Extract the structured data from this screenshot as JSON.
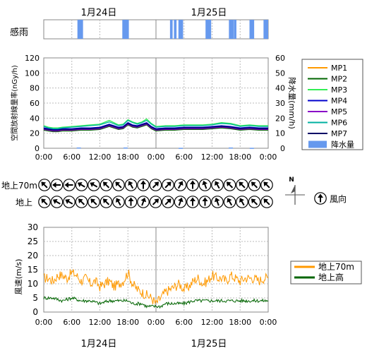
{
  "dates": [
    "1月24日",
    "1月25日"
  ],
  "time_ticks": [
    "0:00",
    "6:00",
    "12:00",
    "18:00",
    "0:00",
    "6:00",
    "12:00",
    "18:00",
    "0:00"
  ],
  "colors": {
    "MP1": "#ff9900",
    "MP2": "#006400",
    "MP3": "#33ee55",
    "MP4": "#0000cc",
    "MP5": "#8a00c8",
    "MP6": "#00b0a0",
    "MP7": "#000066",
    "rain": "#6699ee",
    "wind70": "#ff9900",
    "windGround": "#006400"
  },
  "rain_sense": {
    "label": "感雨",
    "intervals_hours": [
      [
        7.2,
        8.4
      ],
      [
        16.8,
        18.2
      ],
      [
        28.8,
        29.8
      ],
      [
        34.6,
        35.8
      ],
      [
        39.6,
        40.6
      ],
      [
        44.0,
        45.0
      ],
      [
        47.0,
        48.0
      ]
    ],
    "double_intervals_hours": [
      [
        27.0,
        28.4
      ],
      [
        39.8,
        41.2
      ]
    ]
  },
  "chart_data": [
    {
      "type": "line",
      "title": "",
      "ylabel": "空間放射線量率(nGy/h)",
      "y2label": "降水量(mm/h)",
      "ylim": [
        0,
        120
      ],
      "y2lim": [
        0,
        60
      ],
      "yticks": [
        0,
        20,
        40,
        60,
        80,
        100,
        120
      ],
      "y2ticks": [
        0,
        10,
        20,
        30,
        40,
        50,
        60
      ],
      "xlim_hours": [
        0,
        48
      ],
      "grid": true,
      "legend_position": "right",
      "series": [
        {
          "name": "MP1",
          "key": "MP1",
          "x_hours": [
            0,
            1,
            2,
            3,
            4,
            6,
            8,
            10,
            12,
            14,
            16,
            17,
            18,
            19,
            20,
            21,
            22,
            23,
            24,
            26,
            28,
            30,
            32,
            34,
            36,
            38,
            40,
            42,
            44,
            46,
            48
          ],
          "values": [
            26,
            25,
            23,
            24,
            24,
            25,
            26,
            26,
            27,
            31,
            27,
            28,
            33,
            30,
            29,
            31,
            33,
            28,
            25,
            26,
            26,
            27,
            27,
            27,
            28,
            29,
            28,
            26,
            27,
            26,
            26
          ]
        },
        {
          "name": "MP2",
          "key": "MP2",
          "x_hours": [
            0,
            1,
            2,
            3,
            4,
            6,
            8,
            10,
            12,
            14,
            16,
            17,
            18,
            19,
            20,
            21,
            22,
            23,
            24,
            26,
            28,
            30,
            32,
            34,
            36,
            38,
            40,
            42,
            44,
            46,
            48
          ],
          "values": [
            24,
            23,
            22,
            22,
            23,
            23,
            24,
            24,
            25,
            29,
            25,
            26,
            31,
            28,
            27,
            29,
            31,
            26,
            23,
            24,
            24,
            25,
            25,
            25,
            26,
            27,
            26,
            24,
            25,
            24,
            24
          ]
        },
        {
          "name": "MP3",
          "key": "MP3",
          "x_hours": [
            0,
            1,
            2,
            3,
            4,
            6,
            8,
            10,
            12,
            14,
            16,
            17,
            18,
            19,
            20,
            21,
            22,
            23,
            24,
            26,
            28,
            30,
            32,
            34,
            36,
            38,
            40,
            42,
            44,
            46,
            48
          ],
          "values": [
            30,
            28,
            27,
            27,
            28,
            29,
            30,
            31,
            32,
            37,
            31,
            32,
            38,
            35,
            33,
            35,
            39,
            33,
            29,
            30,
            30,
            31,
            31,
            31,
            32,
            34,
            33,
            30,
            31,
            30,
            30
          ]
        },
        {
          "name": "MP4",
          "key": "MP4",
          "x_hours": [
            0,
            1,
            2,
            3,
            4,
            6,
            8,
            10,
            12,
            14,
            16,
            17,
            18,
            19,
            20,
            21,
            22,
            23,
            24,
            26,
            28,
            30,
            32,
            34,
            36,
            38,
            40,
            42,
            44,
            46,
            48
          ],
          "values": [
            27,
            26,
            25,
            25,
            26,
            26,
            27,
            27,
            28,
            32,
            28,
            29,
            34,
            31,
            30,
            32,
            34,
            29,
            26,
            27,
            27,
            28,
            28,
            28,
            29,
            30,
            29,
            27,
            28,
            27,
            27
          ]
        },
        {
          "name": "MP5",
          "key": "MP5",
          "x_hours": [
            0,
            1,
            2,
            3,
            4,
            6,
            8,
            10,
            12,
            14,
            16,
            17,
            18,
            19,
            20,
            21,
            22,
            23,
            24,
            26,
            28,
            30,
            32,
            34,
            36,
            38,
            40,
            42,
            44,
            46,
            48
          ],
          "values": [
            25,
            24,
            23,
            23,
            24,
            24,
            25,
            25,
            26,
            30,
            26,
            27,
            32,
            29,
            28,
            30,
            32,
            27,
            24,
            25,
            25,
            26,
            26,
            26,
            27,
            28,
            27,
            25,
            26,
            25,
            25
          ]
        },
        {
          "name": "MP6",
          "key": "MP6",
          "x_hours": [
            0,
            1,
            2,
            3,
            4,
            6,
            8,
            10,
            12,
            14,
            16,
            17,
            18,
            19,
            20,
            21,
            22,
            23,
            24,
            26,
            28,
            30,
            32,
            34,
            36,
            38,
            40,
            42,
            44,
            46,
            48
          ],
          "values": [
            29,
            27,
            26,
            26,
            27,
            28,
            29,
            30,
            31,
            35,
            30,
            31,
            37,
            34,
            32,
            34,
            37,
            32,
            28,
            29,
            29,
            30,
            30,
            30,
            31,
            33,
            32,
            29,
            30,
            29,
            29
          ]
        },
        {
          "name": "MP7",
          "key": "MP7",
          "x_hours": [
            0,
            1,
            2,
            3,
            4,
            6,
            8,
            10,
            12,
            14,
            16,
            17,
            18,
            19,
            20,
            21,
            22,
            23,
            24,
            26,
            28,
            30,
            32,
            34,
            36,
            38,
            40,
            42,
            44,
            46,
            48
          ],
          "values": [
            26,
            25,
            24,
            24,
            25,
            25,
            26,
            26,
            27,
            31,
            27,
            28,
            33,
            30,
            29,
            31,
            33,
            28,
            25,
            26,
            26,
            27,
            27,
            27,
            28,
            29,
            28,
            26,
            27,
            26,
            26
          ]
        },
        {
          "name": "降水量",
          "key": "rain",
          "type": "bar",
          "axis": "right",
          "x_hours": [
            7.5,
            17.5,
            29.3,
            40.0,
            44.5
          ],
          "values": [
            0.5,
            0.5,
            0.3,
            0.5,
            0.3
          ]
        }
      ]
    },
    {
      "type": "table",
      "title": "",
      "rows": [
        {
          "label": "地上70m",
          "key": "d70",
          "directions_deg": [
            135,
            90,
            90,
            120,
            120,
            135,
            135,
            150,
            180,
            225,
            225,
            210,
            180,
            160,
            150,
            135,
            135,
            135,
            135
          ]
        },
        {
          "label": "地上",
          "key": "dg",
          "directions_deg": [
            135,
            120,
            120,
            135,
            135,
            135,
            150,
            180,
            200,
            225,
            225,
            200,
            180,
            180,
            160,
            150,
            150,
            135,
            135
          ]
        }
      ],
      "legend_label": "風向",
      "north_label": "N"
    },
    {
      "type": "line",
      "title": "",
      "ylabel": "風速(m/s)",
      "ylim": [
        0,
        30
      ],
      "yticks": [
        0,
        5,
        10,
        15,
        20,
        25,
        30
      ],
      "xlim_hours": [
        0,
        48
      ],
      "grid": true,
      "legend_position": "right",
      "series": [
        {
          "name": "地上70m",
          "key": "wind70",
          "x_hours": [
            0,
            1,
            2,
            3,
            4,
            5,
            6,
            7,
            8,
            9,
            10,
            11,
            12,
            13,
            14,
            15,
            16,
            17,
            18,
            19,
            20,
            21,
            22,
            23,
            24,
            25,
            26,
            27,
            28,
            29,
            30,
            31,
            32,
            33,
            34,
            35,
            36,
            37,
            38,
            39,
            40,
            41,
            42,
            43,
            44,
            45,
            46,
            47,
            48
          ],
          "values": [
            12,
            12,
            11,
            13,
            13,
            12,
            14,
            13,
            11,
            12,
            10,
            11,
            9,
            10,
            11,
            9,
            10,
            11,
            14,
            10,
            8,
            7,
            6,
            5,
            3,
            5,
            7,
            8,
            9,
            10,
            8,
            9,
            11,
            12,
            10,
            11,
            13,
            12,
            12,
            11,
            13,
            12,
            11,
            12,
            12,
            12,
            11,
            12,
            12
          ]
        },
        {
          "name": "地上高",
          "key": "windGround",
          "x_hours": [
            0,
            2,
            4,
            6,
            8,
            10,
            12,
            14,
            16,
            18,
            19,
            20,
            21,
            22,
            23,
            24,
            25,
            26,
            28,
            30,
            32,
            34,
            36,
            38,
            40,
            42,
            44,
            46,
            48
          ],
          "values": [
            5,
            5,
            4,
            5,
            4,
            4,
            3,
            4,
            4,
            4,
            3,
            3,
            3,
            2,
            2,
            2,
            2,
            3,
            3,
            3,
            4,
            4,
            4,
            4,
            4,
            4,
            4,
            4,
            4
          ]
        }
      ]
    }
  ]
}
